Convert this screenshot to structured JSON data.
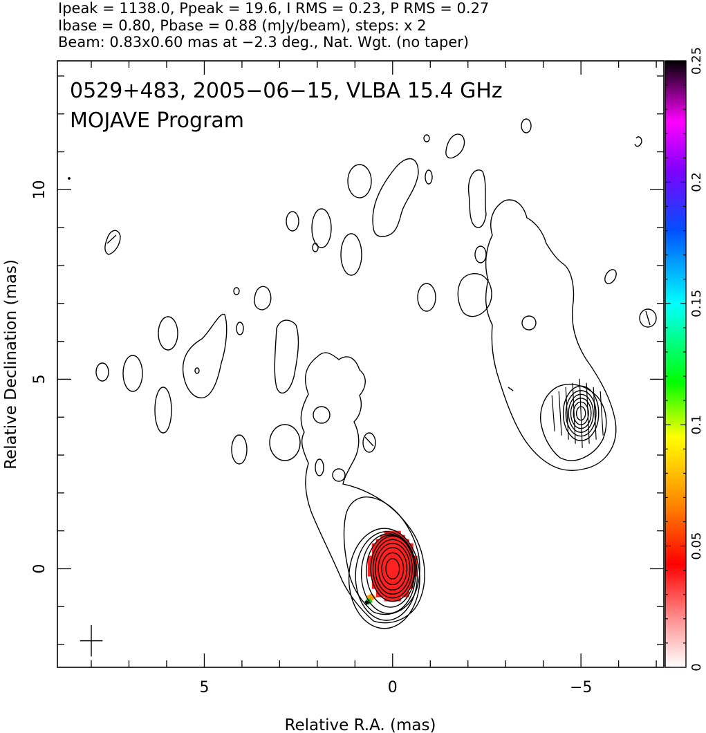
{
  "header": {
    "line1": "Ipeak = 1138.0, Ppeak = 19.6, I RMS = 0.23, P RMS = 0.27",
    "line2": "Ibase = 0.80, Pbase = 0.88 (mJy/beam), steps: x 2",
    "line3": "Beam: 0.83x0.60 mas at −2.3 deg., Nat. Wgt. (no taper)"
  },
  "plot_title": {
    "line1": "0529+483, 2005−06−15, VLBA 15.4 GHz",
    "line2": "MOJAVE Program"
  },
  "colors": {
    "contour": "#000000",
    "frame": "#000000",
    "core_fill": "#ff2020",
    "colorbar_stops": [
      "#ffffff",
      "#ff9090",
      "#ff0000",
      "#ff8800",
      "#ffff00",
      "#00ff00",
      "#00ffff",
      "#0050ff",
      "#8000ff",
      "#ff00ff",
      "#000000"
    ]
  },
  "chart_data": {
    "type": "contour",
    "xlabel": "Relative R.A. (mas)",
    "ylabel": "Relative Declination (mas)",
    "xlim": [
      8.9,
      -7.2
    ],
    "ylim": [
      -2.6,
      13.4
    ],
    "x_ticks": [
      5,
      0,
      -5
    ],
    "x_tick_labels": [
      "5",
      "0",
      "−5"
    ],
    "y_ticks": [
      0,
      5,
      10
    ],
    "y_tick_labels": [
      "0",
      "5",
      "10"
    ],
    "core": {
      "ra": 0.0,
      "dec": 0.0,
      "contour_radii": [
        [
          0.18,
          0.27
        ],
        [
          0.29,
          0.42
        ],
        [
          0.38,
          0.56
        ],
        [
          0.46,
          0.67
        ],
        [
          0.52,
          0.77
        ],
        [
          0.58,
          0.86
        ],
        [
          0.64,
          0.95
        ],
        [
          0.72,
          1.05
        ],
        [
          0.82,
          1.17
        ],
        [
          0.94,
          1.32
        ]
      ]
    },
    "secondary": {
      "ra": -5.0,
      "dec": 4.1,
      "contour_radii": [
        [
          0.12,
          0.18
        ],
        [
          0.2,
          0.3
        ],
        [
          0.27,
          0.4
        ],
        [
          0.33,
          0.5
        ],
        [
          0.4,
          0.6
        ],
        [
          0.47,
          0.72
        ]
      ]
    },
    "polarization": {
      "center_ra": 0.0,
      "center_dec": 0.05,
      "semi_axes_mas": [
        0.63,
        0.95
      ]
    },
    "beam": {
      "ra": 8.0,
      "dec": -1.9,
      "major_mas": 0.83,
      "minor_mas": 0.6,
      "pa_deg": -2.3
    },
    "colorbar": {
      "label_values": [
        0,
        0.05,
        0.1,
        0.15,
        0.2,
        0.25
      ],
      "label_texts": [
        "0",
        "0.05",
        "0.1",
        "0.15",
        "0.2",
        "0.25"
      ],
      "range": [
        0,
        0.25
      ]
    }
  }
}
